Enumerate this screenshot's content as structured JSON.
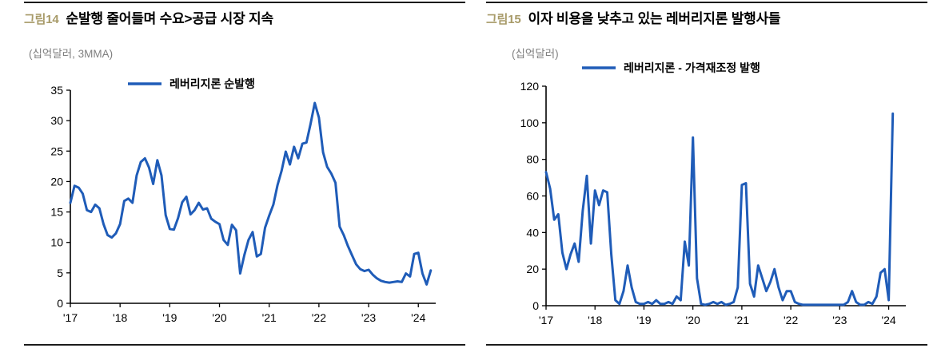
{
  "chart_data": [
    {
      "fig_label": "그림14",
      "title": "순발행 줄어들며 수요>공급 시장 지속",
      "unit_label": "(십억달러, 3MMA)",
      "legend": "레버리지론 순발행",
      "type": "line",
      "color": "#1f5cb8",
      "x_start_year": 2017,
      "frequency": "monthly",
      "xlim": [
        2017,
        2024.35
      ],
      "ylim": [
        0,
        35
      ],
      "yticks": [
        0,
        5,
        10,
        15,
        20,
        25,
        30,
        35
      ],
      "xticks": [
        {
          "x": 2017,
          "label": "'17"
        },
        {
          "x": 2018,
          "label": "'18"
        },
        {
          "x": 2019,
          "label": "'19"
        },
        {
          "x": 2020,
          "label": "'20"
        },
        {
          "x": 2021,
          "label": "'21"
        },
        {
          "x": 2022,
          "label": "'22"
        },
        {
          "x": 2023,
          "label": "'23"
        },
        {
          "x": 2024,
          "label": "'24"
        }
      ],
      "values": [
        16.5,
        19.3,
        19.0,
        18.0,
        15.3,
        15.0,
        16.2,
        15.6,
        13.0,
        11.2,
        10.8,
        11.5,
        13.0,
        16.8,
        17.2,
        16.5,
        21.0,
        23.2,
        23.8,
        22.3,
        19.6,
        23.5,
        21.0,
        14.5,
        12.2,
        12.1,
        14.0,
        16.6,
        17.5,
        14.6,
        15.3,
        16.5,
        15.4,
        15.6,
        13.9,
        13.4,
        13.0,
        10.4,
        9.6,
        12.9,
        12.0,
        4.9,
        7.9,
        10.4,
        11.7,
        7.7,
        8.1,
        12.4,
        14.4,
        16.2,
        19.4,
        21.8,
        24.9,
        22.8,
        25.7,
        23.8,
        26.2,
        26.4,
        29.5,
        32.9,
        30.5,
        24.8,
        22.4,
        21.3,
        19.8,
        12.6,
        11.2,
        9.4,
        7.9,
        6.4,
        5.6,
        5.3,
        5.5,
        4.7,
        4.1,
        3.7,
        3.5,
        3.4,
        3.5,
        3.6,
        3.5,
        4.9,
        4.4,
        8.1,
        8.3,
        4.9,
        3.1,
        5.4
      ],
      "layout": {
        "l": 58,
        "r": 37,
        "t": 28,
        "b": 40,
        "legend": [
          130,
          20
        ]
      }
    },
    {
      "fig_label": "그림15",
      "title": "이자 비용을 낮추고 있는 레버리지론 발행사들",
      "unit_label": "(십억달러)",
      "legend": "레버리지론 - 가격재조정 발행",
      "type": "line",
      "color": "#1f5cb8",
      "x_start_year": 2017,
      "frequency": "monthly",
      "xlim": [
        2017,
        2024.35
      ],
      "ylim": [
        0,
        120
      ],
      "yticks": [
        0,
        20,
        40,
        60,
        80,
        100,
        120
      ],
      "xticks": [
        {
          "x": 2017,
          "label": "'17"
        },
        {
          "x": 2018,
          "label": "'18"
        },
        {
          "x": 2019,
          "label": "'19"
        },
        {
          "x": 2020,
          "label": "'20"
        },
        {
          "x": 2021,
          "label": "'21"
        },
        {
          "x": 2022,
          "label": "'22"
        },
        {
          "x": 2023,
          "label": "'23"
        },
        {
          "x": 2024,
          "label": "'24"
        }
      ],
      "values": [
        73,
        64,
        47,
        50,
        29,
        20,
        28,
        34,
        24,
        52,
        71,
        34,
        63,
        55,
        63,
        62,
        28,
        3,
        1,
        8,
        22,
        10,
        2,
        1,
        1,
        2,
        1,
        3,
        1,
        1,
        2,
        1,
        5,
        3,
        35,
        22,
        92,
        15,
        1,
        0.5,
        1,
        2,
        1,
        2,
        0.5,
        1,
        2,
        10,
        66,
        67,
        12,
        5,
        22,
        15,
        8,
        13,
        20,
        10,
        3,
        8,
        8,
        2,
        1,
        0.5,
        0.5,
        0.5,
        0.5,
        0.5,
        0.5,
        0.5,
        0.5,
        0.5,
        0.5,
        0.5,
        2,
        8,
        2,
        0.5,
        0.5,
        2,
        1,
        5,
        18,
        20,
        3,
        105
      ],
      "layout": {
        "l": 75,
        "r": 27,
        "t": 38,
        "b": 37,
        "legend": [
          120,
          15
        ]
      }
    }
  ]
}
